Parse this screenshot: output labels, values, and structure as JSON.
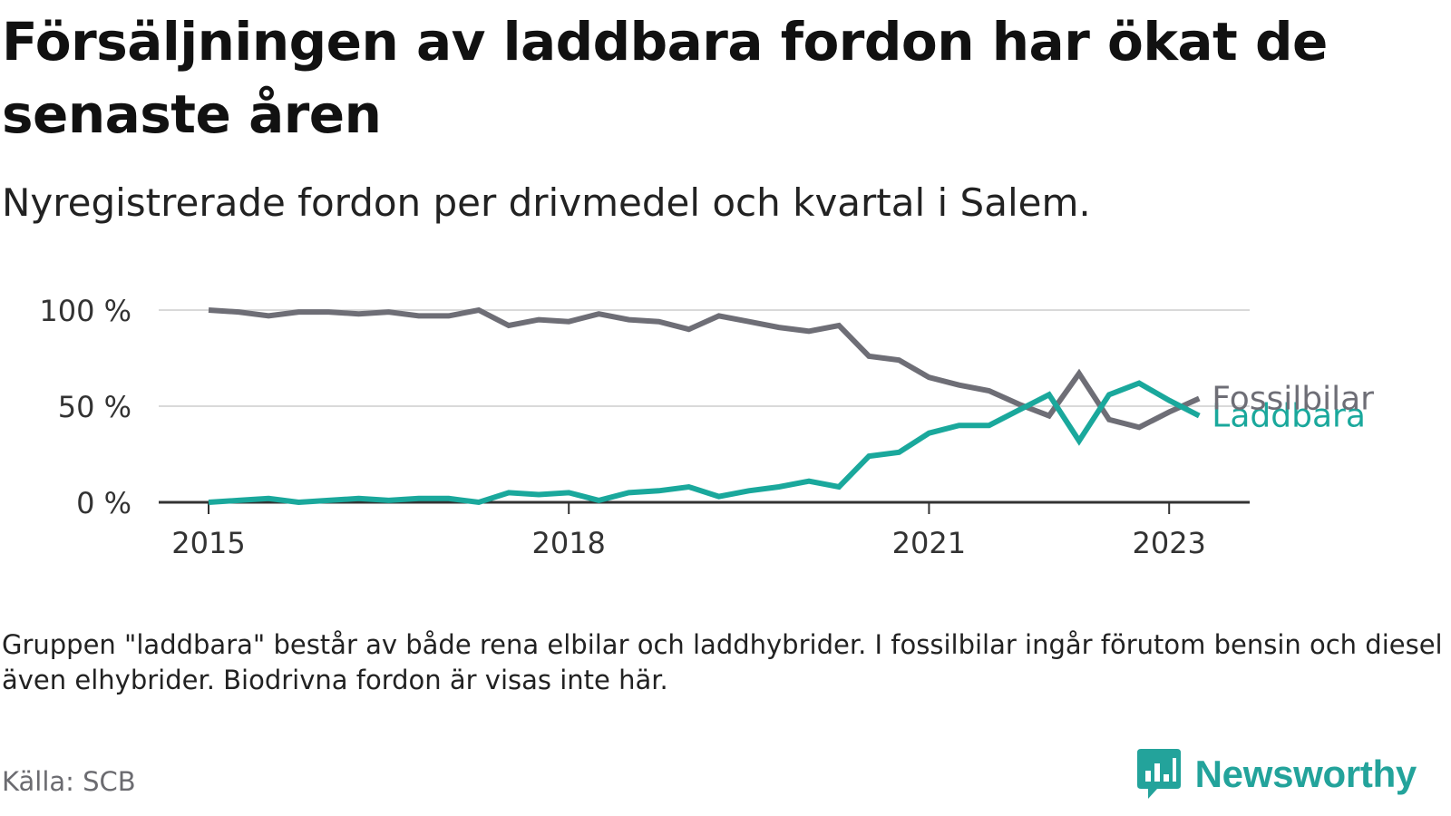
{
  "title": "Försäljningen av laddbara fordon har ökat de senaste åren",
  "subtitle": "Nyregistrerade fordon per drivmedel och kvartal i Salem.",
  "note": "Gruppen \"laddbara\" består av både rena elbilar och laddhybrider. I fossilbilar ingår förutom bensin och diesel även elhybrider. Biodrivna fordon är visas inte här.",
  "source": "Källa: SCB",
  "brand": {
    "name": "Newsworthy",
    "icon": "newsworthy-logo-icon",
    "color": "#23a39b"
  },
  "colors": {
    "fossil": "#6e6e76",
    "laddbara": "#1aa89c",
    "grid": "#d9d9d9",
    "axis": "#333333"
  },
  "chart_data": {
    "type": "line",
    "title": "Nyregistrerade fordon per drivmedel och kvartal i Salem.",
    "xlabel": "",
    "ylabel": "",
    "x_start": "2015 Q1",
    "xticks": [
      {
        "label": "2015",
        "index": 0
      },
      {
        "label": "2018",
        "index": 12
      },
      {
        "label": "2021",
        "index": 24
      },
      {
        "label": "2023",
        "index": 32
      }
    ],
    "yticks": [
      {
        "label": "0 %",
        "value": 0
      },
      {
        "label": "50 %",
        "value": 50
      },
      {
        "label": "100 %",
        "value": 100
      }
    ],
    "ylim": [
      0,
      100
    ],
    "grid": true,
    "series": [
      {
        "name": "Fossilbilar",
        "color": "#6e6e76",
        "values": [
          100,
          99,
          97,
          99,
          99,
          98,
          99,
          97,
          97,
          100,
          92,
          95,
          94,
          98,
          95,
          94,
          90,
          97,
          94,
          91,
          89,
          92,
          76,
          74,
          65,
          61,
          58,
          51,
          45,
          67,
          43,
          39,
          47,
          54
        ]
      },
      {
        "name": "Laddbara",
        "color": "#1aa89c",
        "values": [
          0,
          1,
          2,
          0,
          1,
          2,
          1,
          2,
          2,
          0,
          5,
          4,
          5,
          1,
          5,
          6,
          8,
          3,
          6,
          8,
          11,
          8,
          24,
          26,
          36,
          40,
          40,
          48,
          56,
          32,
          56,
          62,
          53,
          45
        ]
      }
    ]
  }
}
